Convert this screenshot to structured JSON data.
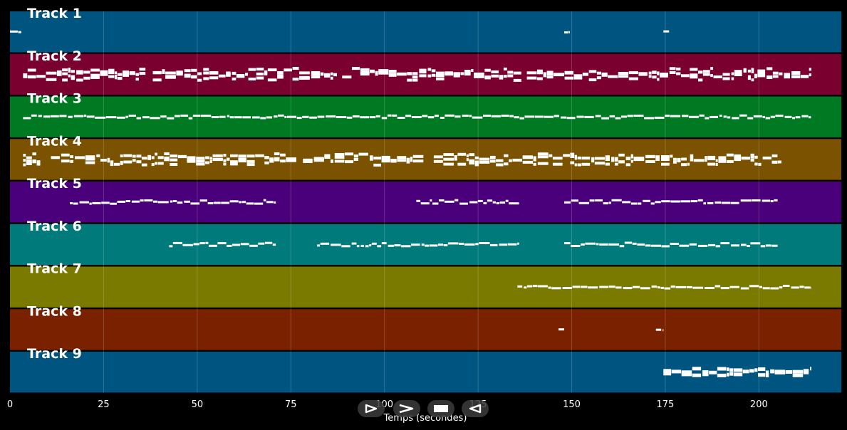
{
  "chart_data": {
    "type": "piano-roll",
    "xlabel": "Temps (secondes)",
    "xlim": [
      0,
      222
    ],
    "x_ticks": [
      0,
      25,
      50,
      75,
      100,
      125,
      150,
      175,
      200
    ],
    "grid": true,
    "tracks": [
      {
        "name": "Track 1",
        "color": "#005580",
        "segments": [
          [
            0,
            3
          ],
          [
            148,
            149.5
          ],
          [
            174.5,
            176
          ]
        ]
      },
      {
        "name": "Track 2",
        "color": "#7a0030",
        "segments": [
          [
            3.5,
            214
          ]
        ]
      },
      {
        "name": "Track 3",
        "color": "#007a22",
        "segments": [
          [
            3.5,
            214
          ]
        ]
      },
      {
        "name": "Track 4",
        "color": "#7a5200",
        "segments": [
          [
            3.5,
            206
          ]
        ]
      },
      {
        "name": "Track 5",
        "color": "#4a007a",
        "segments": [
          [
            16,
            71
          ],
          [
            108.5,
            136
          ],
          [
            148,
            205
          ]
        ]
      },
      {
        "name": "Track 6",
        "color": "#007a7a",
        "segments": [
          [
            42.5,
            71
          ],
          [
            82,
            136
          ],
          [
            148,
            205
          ]
        ]
      },
      {
        "name": "Track 7",
        "color": "#7a7a00",
        "segments": [
          [
            135.5,
            214
          ]
        ]
      },
      {
        "name": "Track 8",
        "color": "#7a2200",
        "segments": [
          [
            146.5,
            148
          ],
          [
            172.5,
            174.5
          ]
        ]
      },
      {
        "name": "Track 9",
        "color": "#005580",
        "segments": [
          [
            174.5,
            214
          ]
        ]
      }
    ]
  },
  "controls": [
    {
      "name": "step-back-button",
      "icon": "play-outline-icon"
    },
    {
      "name": "next-button",
      "icon": "chevron-right-icon"
    },
    {
      "name": "stop-button",
      "icon": "stop-square-icon"
    },
    {
      "name": "reverse-button",
      "icon": "reverse-play-icon"
    }
  ]
}
